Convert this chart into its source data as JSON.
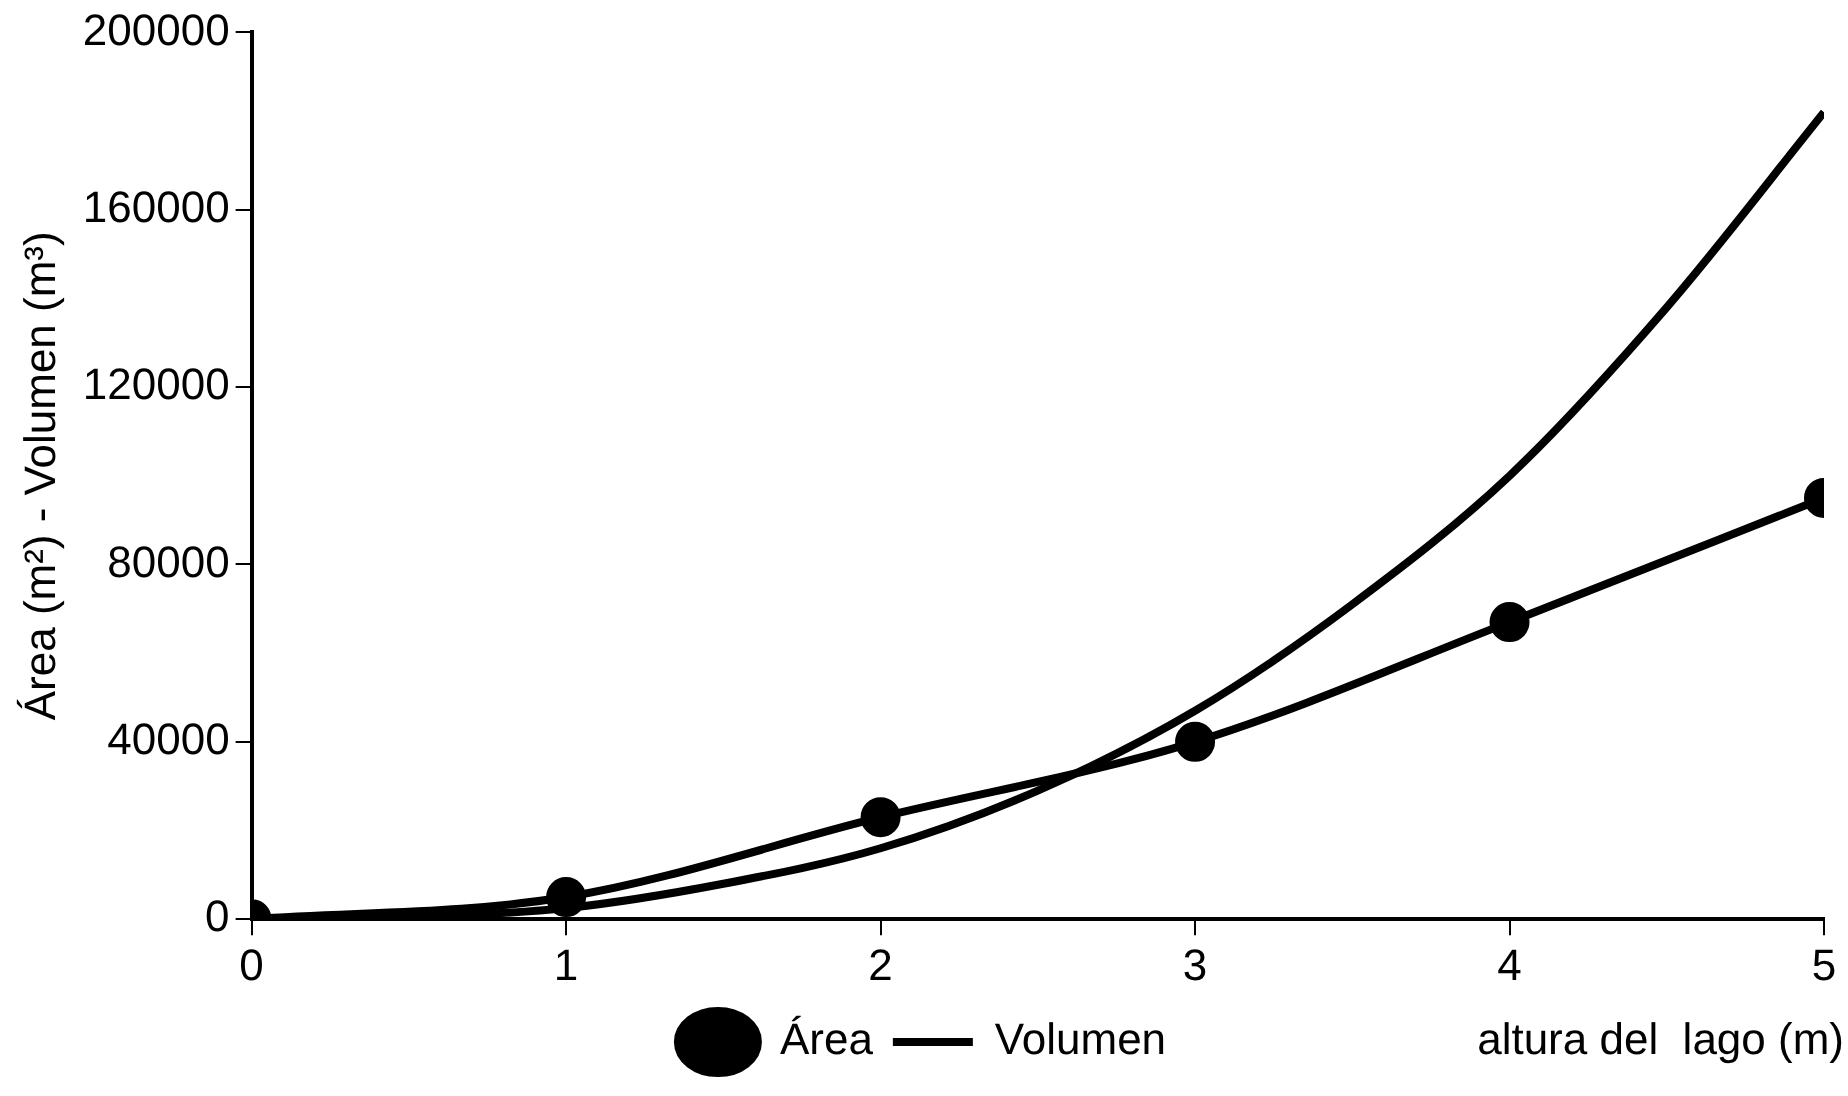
{
  "chart_data": {
    "type": "line",
    "ylabel": "Área (m²) - Volumen (m³)",
    "xlabel": "altura del  lago (m)",
    "xlim": [
      0,
      5
    ],
    "xticks": [
      0,
      1,
      2,
      3,
      4,
      5
    ],
    "ylim": [
      0,
      200000
    ],
    "yticks": [
      0,
      40000,
      80000,
      120000,
      160000,
      200000
    ],
    "grid": false,
    "legend": "bottom",
    "line_style": "solid",
    "series": [
      {
        "name": "Área",
        "color": "#000000",
        "marker": "circle",
        "x": [
          0,
          1,
          2,
          3,
          4,
          5
        ],
        "values": [
          0,
          5000,
          23000,
          40000,
          67000,
          95000
        ]
      },
      {
        "name": "Volumen",
        "color": "#000000",
        "marker": "none",
        "x": [
          0,
          0.5,
          1,
          1.5,
          2,
          2.5,
          3,
          3.5,
          4,
          4.5,
          5
        ],
        "values": [
          0,
          500,
          2500,
          8000,
          16000,
          29000,
          47000,
          71000,
          100000,
          138000,
          182000
        ]
      }
    ]
  }
}
